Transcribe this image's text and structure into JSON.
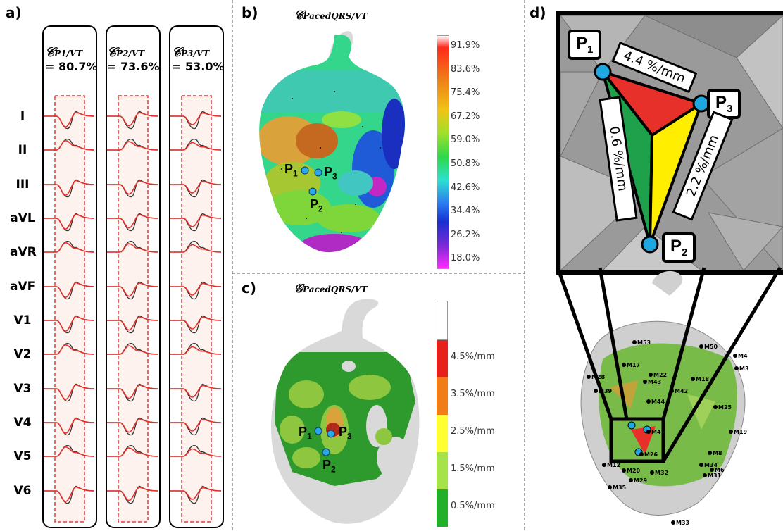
{
  "panels": {
    "a": "a)",
    "b": "b)",
    "c": "c)",
    "d": "d)"
  },
  "panel_a": {
    "leads": [
      "I",
      "II",
      "III",
      "aVL",
      "aVR",
      "aVF",
      "V1",
      "V2",
      "V3",
      "V4",
      "V5",
      "V6"
    ],
    "columns": [
      {
        "label_main": "𝒞",
        "label_sub": "P1/VT",
        "value": "= 80.7%"
      },
      {
        "label_main": "𝒞",
        "label_sub": "P2/VT",
        "value": "= 73.6%"
      },
      {
        "label_main": "𝒞",
        "label_sub": "P3/VT",
        "value": "= 53.0%"
      }
    ],
    "colors": {
      "paced": "#e8302a",
      "vt": "#333333",
      "window": "#e23b3b"
    }
  },
  "panel_b": {
    "title_main": "𝒞",
    "title_sub": "PacedQRS/VT",
    "colorbar_ticks": [
      "91.9%",
      "83.6%",
      "75.4%",
      "67.2%",
      "59.0%",
      "50.8%",
      "42.6%",
      "34.4%",
      "26.2%",
      "18.0%"
    ],
    "points": {
      "p1": "P",
      "p1_sub": "1",
      "p2": "P",
      "p2_sub": "2",
      "p3": "P",
      "p3_sub": "3"
    }
  },
  "panel_c": {
    "title_main": "𝒢",
    "title_sub": "PacedQRS/VT",
    "colorbar_ticks": [
      "4.5%/mm",
      "3.5%/mm",
      "2.5%/mm",
      "1.5%/mm",
      "0.5%/mm"
    ],
    "colorbar_colors": [
      "#ffffff",
      "#e8201c",
      "#f07d16",
      "#ffff33",
      "#a6e34a",
      "#22b02a"
    ],
    "points": {
      "p1": "P",
      "p1_sub": "1",
      "p2": "P",
      "p2_sub": "2",
      "p3": "P",
      "p3_sub": "3"
    }
  },
  "panel_d": {
    "points": {
      "p1": "P",
      "p1_sub": "1",
      "p2": "P",
      "p2_sub": "2",
      "p3": "P",
      "p3_sub": "3"
    },
    "gradients": {
      "p1_p3": "4.4 %/mm",
      "p1_p2": "0.6 %/mm",
      "p3_p2": "2.2 %/mm"
    },
    "markers": [
      "M53",
      "M50",
      "M4",
      "M3",
      "M17",
      "M22",
      "M43",
      "M18",
      "M42",
      "M28",
      "M39",
      "M44",
      "M25",
      "M47",
      "M26",
      "M19",
      "M8",
      "M34",
      "M6",
      "M31",
      "M32",
      "M20",
      "M29",
      "M35",
      "M12",
      "M33"
    ],
    "colors": {
      "triangle_red": "#e8302a",
      "triangle_green": "#1fa04a",
      "triangle_yellow": "#ffee00",
      "point": "#1ea7e1"
    }
  }
}
